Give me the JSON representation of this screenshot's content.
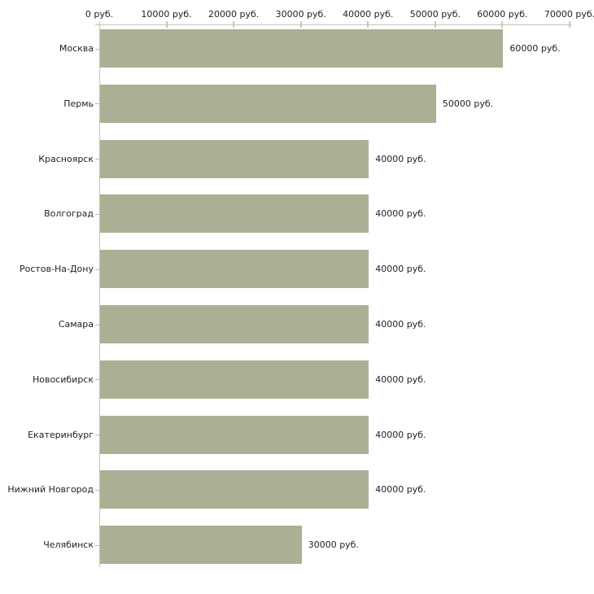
{
  "chart_data": {
    "type": "bar",
    "orientation": "horizontal",
    "title": "",
    "xlabel": "",
    "ylabel": "",
    "unit": "руб.",
    "categories": [
      "Москва",
      "Пермь",
      "Красноярск",
      "Волгоград",
      "Ростов-На-Дону",
      "Самара",
      "Новосибирск",
      "Екатеринбург",
      "Нижний Новгород",
      "Челябинск"
    ],
    "values": [
      60000,
      50000,
      40000,
      40000,
      40000,
      40000,
      40000,
      40000,
      40000,
      30000
    ],
    "value_labels": [
      "60000 руб.",
      "50000 руб.",
      "40000 руб.",
      "40000 руб.",
      "40000 руб.",
      "40000 руб.",
      "40000 руб.",
      "40000 руб.",
      "40000 руб.",
      "30000 руб."
    ],
    "x_axis": {
      "position": "top",
      "range": [
        0,
        70000
      ],
      "ticks": [
        0,
        10000,
        20000,
        30000,
        40000,
        50000,
        60000,
        70000
      ],
      "tick_labels": [
        "0 руб.",
        "10000 руб.",
        "20000 руб.",
        "30000 руб.",
        "40000 руб.",
        "50000 руб.",
        "60000 руб.",
        "70000 руб."
      ]
    },
    "grid": false,
    "legend": false,
    "colors": {
      "bar_fill": "#aab094",
      "axis_line": "#c2c2c2",
      "value_tick": "#c7cba0",
      "category_tick": "#b4b6a8",
      "text": "#222222",
      "background": "#ffffff"
    }
  }
}
